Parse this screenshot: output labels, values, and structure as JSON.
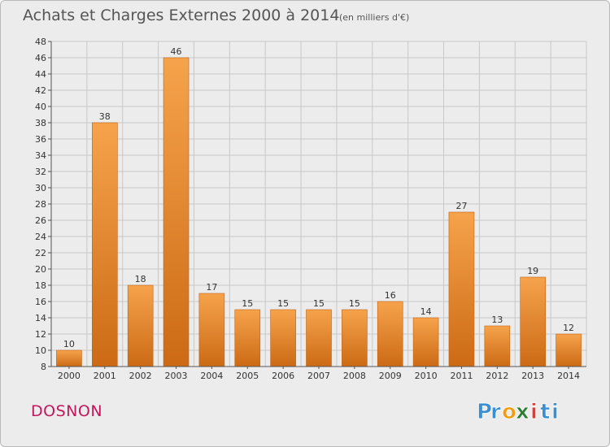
{
  "title": "Achats et Charges Externes 2000 à 2014",
  "unit_note": "(en milliers d'€)",
  "commune": "DOSNON",
  "logo": {
    "text": "Proxiti",
    "letters": [
      "P",
      "r",
      "o",
      "x",
      "i",
      "t",
      "i"
    ],
    "colors": [
      "#3b8fd1",
      "#3b8fd1",
      "#f39c12",
      "#2e7d32",
      "#e53935",
      "#3b8fd1",
      "#3b8fd1"
    ]
  },
  "colors": {
    "bar_top": "#f6a34c",
    "bar_bottom": "#cc6a15",
    "bar_edge": "#c46212",
    "grid": "#c8c8c8",
    "axis": "#555555",
    "text": "#333333"
  },
  "chart_data": {
    "type": "bar",
    "title": "Achats et Charges Externes 2000 à 2014",
    "subtitle": "(en milliers d'€)",
    "categories": [
      "2000",
      "2001",
      "2002",
      "2003",
      "2004",
      "2005",
      "2006",
      "2007",
      "2008",
      "2009",
      "2010",
      "2011",
      "2012",
      "2013",
      "2014"
    ],
    "values": [
      10,
      38,
      18,
      46,
      17,
      15,
      15,
      15,
      15,
      16,
      14,
      27,
      13,
      19,
      12
    ],
    "data_labels": [
      "10",
      "38",
      "18",
      "46",
      "17",
      "15",
      "15",
      "15",
      "15",
      "16",
      "14",
      "27",
      "13",
      "19",
      "12"
    ],
    "ylim": [
      8,
      48
    ],
    "yticks": [
      8,
      10,
      12,
      14,
      16,
      18,
      20,
      22,
      24,
      26,
      28,
      30,
      32,
      34,
      36,
      38,
      40,
      42,
      44,
      46,
      48
    ],
    "grid": true,
    "xlabel": "",
    "ylabel": ""
  }
}
